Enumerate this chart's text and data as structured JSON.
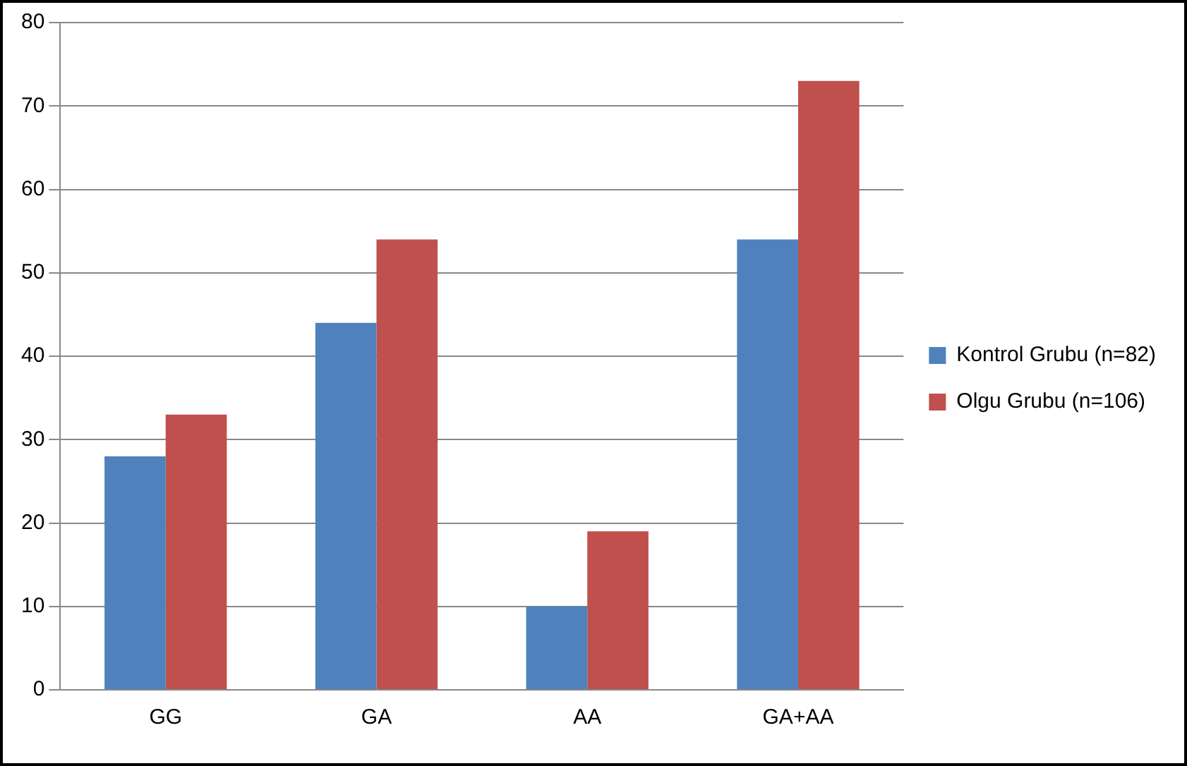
{
  "chart_data": {
    "type": "bar",
    "categories": [
      "GG",
      "GA",
      "AA",
      "GA+AA"
    ],
    "series": [
      {
        "name": "Kontrol Grubu (n=82)",
        "color": "#4f81bd",
        "values": [
          28,
          44,
          10,
          54
        ]
      },
      {
        "name": "Olgu Grubu (n=106)",
        "color": "#c0504d",
        "values": [
          33,
          54,
          19,
          73
        ]
      }
    ],
    "ylim": [
      0,
      80
    ],
    "yticks": [
      0,
      10,
      20,
      30,
      40,
      50,
      60,
      70,
      80
    ],
    "grid": "y",
    "legend": "right"
  }
}
